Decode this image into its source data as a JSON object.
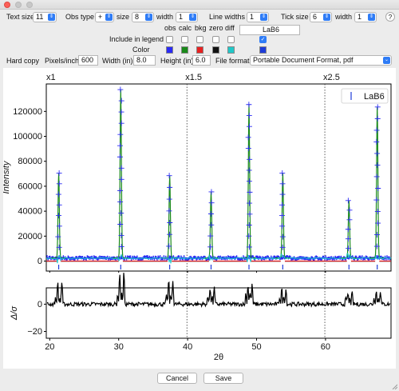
{
  "window": {
    "close": "●",
    "minimize": "●",
    "zoom": "●"
  },
  "toolbar": {
    "text_size_label": "Text size",
    "text_size_value": "11",
    "obs_type_label": "Obs type",
    "obs_type_value": "+",
    "size_label": "size",
    "size_value": "8",
    "width_label": "width",
    "width_value": "1",
    "line_widths_label": "Line widths",
    "line_widths_value": "1",
    "tick_size_label": "Tick size",
    "tick_size_value": "6",
    "tick_width_label": "width",
    "tick_width_value": "1",
    "help": "?"
  },
  "legend_row": {
    "cols": [
      "obs",
      "calc",
      "bkg",
      "zero",
      "diff"
    ],
    "phase_name": "LaB6",
    "include_label": "Include in legend",
    "color_label": "Color",
    "colors": [
      "#2a2af5",
      "#1a8a1a",
      "#e82020",
      "#111111",
      "#20c8c8",
      "#1e3cd8"
    ]
  },
  "hardcopy": {
    "label": "Hard copy",
    "ppi_label": "Pixels/inch:",
    "ppi_value": "600",
    "width_label": "Width (in):",
    "width_value": "8.0",
    "height_label": "Height (in):",
    "height_value": "6.0",
    "format_label": "File format:",
    "format_value": "Portable Document Format, pdf"
  },
  "buttons": {
    "cancel": "Cancel",
    "save": "Save"
  },
  "chart_data": {
    "type": "line",
    "xlabel": "2θ",
    "ylabel_top": "Intensity",
    "ylabel_bottom": "Δ/σ",
    "xlim": [
      19.5,
      69.5
    ],
    "ylim_top": [
      -8000,
      142000
    ],
    "ylim_bottom": [
      -25,
      12
    ],
    "xticks": [
      "20",
      "30",
      "40",
      "50",
      "60"
    ],
    "yticks_top": [
      "0",
      "20000",
      "40000",
      "60000",
      "80000",
      "100000",
      "120000"
    ],
    "yticks_bottom": [
      "−20",
      "0"
    ],
    "scale_regions": [
      {
        "label": "x1",
        "from": 19.5
      },
      {
        "label": "x1.5",
        "from": 39.9
      },
      {
        "label": "x2.5",
        "from": 59.9
      }
    ],
    "legend": "LaB6",
    "background_level": 2500,
    "peaks": [
      {
        "x": 21.3,
        "y": 68000
      },
      {
        "x": 30.3,
        "y": 135000
      },
      {
        "x": 37.4,
        "y": 66000
      },
      {
        "x": 43.4,
        "y": 53000
      },
      {
        "x": 48.9,
        "y": 123000
      },
      {
        "x": 53.8,
        "y": 68000
      },
      {
        "x": 63.4,
        "y": 46000
      },
      {
        "x": 67.5,
        "y": 121000
      }
    ],
    "difference_features": [
      {
        "x": 21.3,
        "low": -16,
        "high": 4
      },
      {
        "x": 30.3,
        "low": -23,
        "high": 7
      },
      {
        "x": 37.4,
        "low": -17,
        "high": 6
      },
      {
        "x": 43.4,
        "low": -12,
        "high": 5
      },
      {
        "x": 48.9,
        "low": -14,
        "high": 8
      },
      {
        "x": 53.8,
        "low": -11,
        "high": 5
      },
      {
        "x": 63.4,
        "low": -8,
        "high": 4
      },
      {
        "x": 67.5,
        "low": -10,
        "high": 4
      }
    ]
  }
}
